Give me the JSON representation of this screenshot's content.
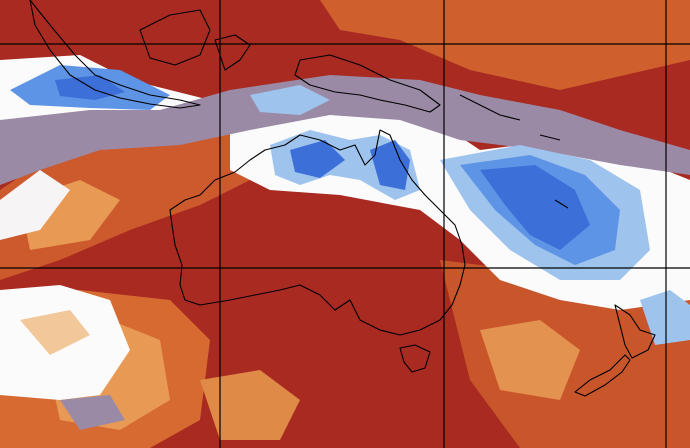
{
  "map": {
    "colors": {
      "deep_red": "#a02820",
      "red": "#b9381f",
      "red_orange": "#c8502a",
      "orange": "#d86c32",
      "light_orange": "#e89a55",
      "peach": "#f2c79a",
      "white": "#fbfbfc",
      "mauve": "#9a8aa6",
      "light_blue": "#9ec4ee",
      "mid_blue": "#5e94e6",
      "blue": "#3c6fd8",
      "coastline": "#000000",
      "gridline": "#000000"
    },
    "features": [
      "sea-surface-temperature-anomaly",
      "coastlines",
      "lat-lon-grid"
    ],
    "regions": [
      "indonesia",
      "papua-new-guinea",
      "australia",
      "tasmania",
      "new-zealand",
      "coral-sea",
      "tasman-sea"
    ]
  }
}
